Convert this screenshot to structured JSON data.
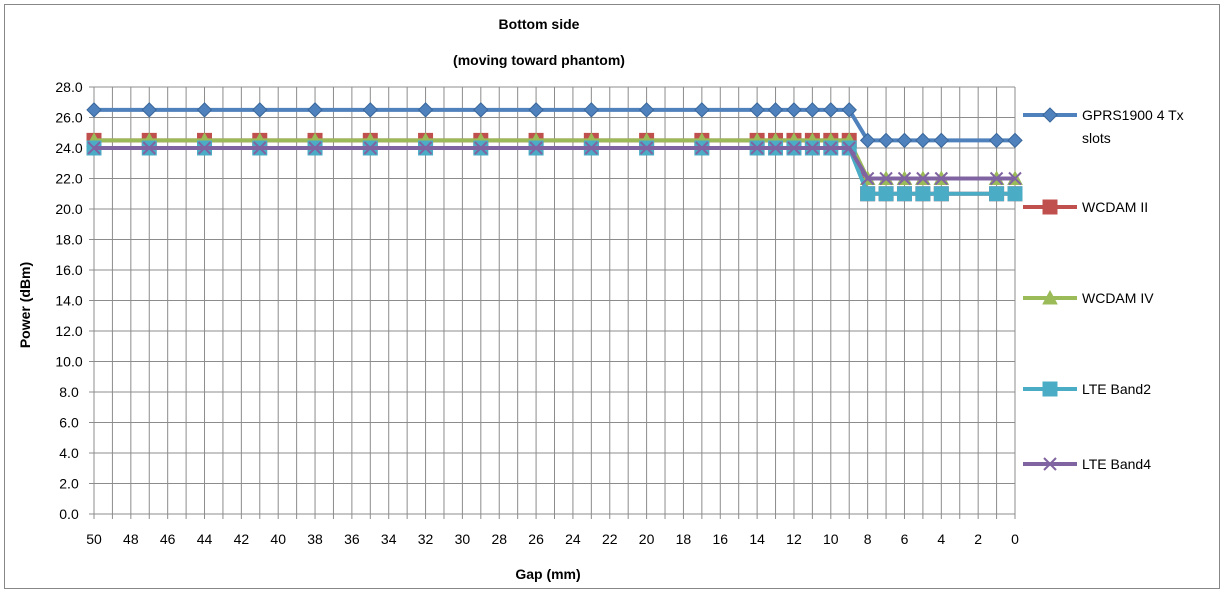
{
  "chart_data": {
    "type": "line",
    "title_line1": "Bottom side",
    "title_line2": "(moving toward phantom)",
    "xlabel": "Gap (mm)",
    "ylabel": "Power (dBm)",
    "x_reversed": true,
    "xlim": [
      0,
      50
    ],
    "ylim": [
      0,
      28
    ],
    "x_ticks": [
      50,
      48,
      46,
      44,
      42,
      40,
      38,
      36,
      34,
      32,
      30,
      28,
      26,
      24,
      22,
      20,
      18,
      16,
      14,
      12,
      10,
      8,
      6,
      4,
      2,
      0
    ],
    "y_ticks": [
      0.0,
      2.0,
      4.0,
      6.0,
      8.0,
      10.0,
      12.0,
      14.0,
      16.0,
      18.0,
      20.0,
      22.0,
      24.0,
      26.0,
      28.0
    ],
    "grid": true,
    "legend_position": "right",
    "x": [
      50,
      47,
      44,
      41,
      38,
      35,
      32,
      29,
      26,
      23,
      20,
      17,
      14,
      13,
      12,
      11,
      10,
      9,
      8,
      7,
      6,
      5,
      4,
      1,
      0
    ],
    "series": [
      {
        "name": "GPRS1900  4 Tx slots",
        "name_lines": [
          "GPRS1900  4 Tx",
          "slots"
        ],
        "color": "#4F81BD",
        "marker": "diamond",
        "values": [
          26.5,
          26.5,
          26.5,
          26.5,
          26.5,
          26.5,
          26.5,
          26.5,
          26.5,
          26.5,
          26.5,
          26.5,
          26.5,
          26.5,
          26.5,
          26.5,
          26.5,
          26.5,
          24.5,
          24.5,
          24.5,
          24.5,
          24.5,
          24.5,
          24.5
        ]
      },
      {
        "name": "WCDAM II",
        "name_lines": [
          "WCDAM II"
        ],
        "color": "#C0504D",
        "marker": "square",
        "values": [
          24.5,
          24.5,
          24.5,
          24.5,
          24.5,
          24.5,
          24.5,
          24.5,
          24.5,
          24.5,
          24.5,
          24.5,
          24.5,
          24.5,
          24.5,
          24.5,
          24.5,
          24.5,
          21.0,
          21.0,
          21.0,
          21.0,
          21.0,
          21.0,
          21.0
        ]
      },
      {
        "name": "WCDAM IV",
        "name_lines": [
          "WCDAM IV"
        ],
        "color": "#9BBB59",
        "marker": "triangle",
        "values": [
          24.5,
          24.5,
          24.5,
          24.5,
          24.5,
          24.5,
          24.5,
          24.5,
          24.5,
          24.5,
          24.5,
          24.5,
          24.5,
          24.5,
          24.5,
          24.5,
          24.5,
          24.5,
          22.0,
          22.0,
          22.0,
          22.0,
          22.0,
          22.0,
          22.0
        ]
      },
      {
        "name": "LTE Band2",
        "name_lines": [
          "LTE Band2"
        ],
        "color": "#4BACC6",
        "marker": "square",
        "values": [
          24.0,
          24.0,
          24.0,
          24.0,
          24.0,
          24.0,
          24.0,
          24.0,
          24.0,
          24.0,
          24.0,
          24.0,
          24.0,
          24.0,
          24.0,
          24.0,
          24.0,
          24.0,
          21.0,
          21.0,
          21.0,
          21.0,
          21.0,
          21.0,
          21.0
        ]
      },
      {
        "name": "LTE Band4",
        "name_lines": [
          "LTE Band4"
        ],
        "color": "#8064A2",
        "marker": "x",
        "values": [
          24.0,
          24.0,
          24.0,
          24.0,
          24.0,
          24.0,
          24.0,
          24.0,
          24.0,
          24.0,
          24.0,
          24.0,
          24.0,
          24.0,
          24.0,
          24.0,
          24.0,
          24.0,
          22.0,
          22.0,
          22.0,
          22.0,
          22.0,
          22.0,
          22.0
        ]
      }
    ]
  }
}
